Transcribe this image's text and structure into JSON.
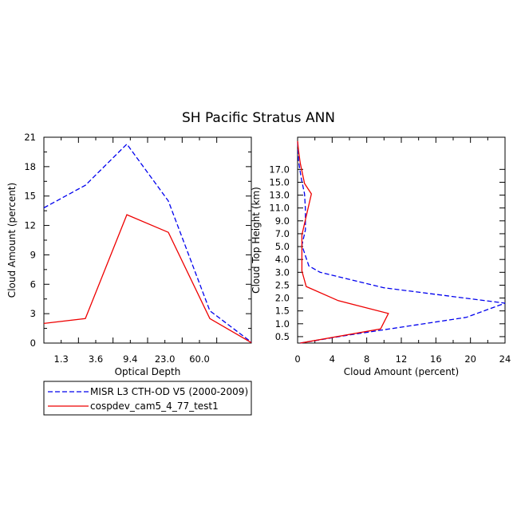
{
  "colors": {
    "misr": "#0000ee",
    "cosp": "#ee0000",
    "axis": "#000000",
    "background": "#ffffff"
  },
  "legend": {
    "entries": [
      {
        "name": "MISR L3 CTH-OD V5 (2000-2009)",
        "style": "dashed",
        "color": "#0000ee"
      },
      {
        "name": "cospdev_cam5_4_77_test1",
        "style": "solid",
        "color": "#ee0000"
      }
    ]
  },
  "chart_data": [
    {
      "type": "line",
      "title": "SH Pacific Stratus ANN",
      "xlabel": "Optical Depth",
      "ylabel": "Cloud Amount (percent)",
      "xscale": "log-bins",
      "xlim": [
        0,
        6
      ],
      "ylim": [
        0,
        21
      ],
      "x_ticks": [
        {
          "pos": 0.5,
          "label": "1.3"
        },
        {
          "pos": 1.5,
          "label": "3.6"
        },
        {
          "pos": 2.5,
          "label": "9.4"
        },
        {
          "pos": 3.5,
          "label": "23.0"
        },
        {
          "pos": 4.5,
          "label": "60.0"
        }
      ],
      "y_ticks": [
        "0",
        "3",
        "6",
        "9",
        "12",
        "15",
        "18",
        "21"
      ],
      "series": [
        {
          "name": "MISR L3 CTH-OD V5 (2000-2009)",
          "style": "dashed",
          "color": "#0000ee",
          "points": [
            [
              0,
              13.8
            ],
            [
              1.2,
              16.1
            ],
            [
              2.4,
              20.3
            ],
            [
              3.6,
              14.5
            ],
            [
              4.8,
              3.3
            ],
            [
              6.0,
              0.1
            ]
          ]
        },
        {
          "name": "cospdev_cam5_4_77_test1",
          "style": "solid",
          "color": "#ee0000",
          "points": [
            [
              0,
              2.0
            ],
            [
              1.2,
              2.5
            ],
            [
              2.4,
              13.1
            ],
            [
              3.6,
              11.3
            ],
            [
              4.8,
              2.5
            ],
            [
              6.0,
              0.05
            ]
          ]
        }
      ]
    },
    {
      "type": "line",
      "title": "",
      "xlabel": "Cloud Amount (percent)",
      "ylabel": "Cloud Top Height (km)",
      "xlim": [
        0,
        24
      ],
      "ylim": [
        0,
        16
      ],
      "x_ticks": [
        "0",
        "4",
        "8",
        "12",
        "16",
        "20",
        "24"
      ],
      "y_ticks": [
        "0.5",
        "1.0",
        "1.5",
        "2.0",
        "2.5",
        "3.0",
        "4.0",
        "5.0",
        "7.0",
        "9.0",
        "11.0",
        "13.0",
        "15.0",
        "17.0"
      ],
      "series": [
        {
          "name": "MISR L3 CTH-OD V5 (2000-2009)",
          "style": "dashed",
          "color": "#0000ee",
          "points": [
            [
              0.3,
              0
            ],
            [
              5.7,
              0.6
            ],
            [
              19.5,
              2.0
            ],
            [
              24.0,
              3.1
            ],
            [
              10.0,
              4.3
            ],
            [
              2.6,
              5.5
            ],
            [
              1.3,
              6.0
            ],
            [
              0.5,
              7.6
            ],
            [
              0.9,
              8.8
            ],
            [
              0.9,
              10.4
            ],
            [
              0.8,
              11.6
            ],
            [
              0.4,
              12.9
            ],
            [
              0.1,
              14.2
            ],
            [
              0.0,
              15.7
            ]
          ]
        },
        {
          "name": "cospdev_cam5_4_77_test1",
          "style": "solid",
          "color": "#ee0000",
          "points": [
            [
              0.3,
              0
            ],
            [
              9.6,
              1.1
            ],
            [
              10.5,
              2.3
            ],
            [
              4.7,
              3.3
            ],
            [
              1.0,
              4.4
            ],
            [
              0.5,
              5.6
            ],
            [
              0.5,
              6.4
            ],
            [
              0.5,
              7.6
            ],
            [
              0.5,
              8.4
            ],
            [
              1.6,
              11.6
            ],
            [
              0.8,
              12.4
            ],
            [
              0.3,
              14.0
            ],
            [
              0.1,
              15.0
            ],
            [
              0.0,
              15.7
            ]
          ]
        }
      ]
    }
  ]
}
